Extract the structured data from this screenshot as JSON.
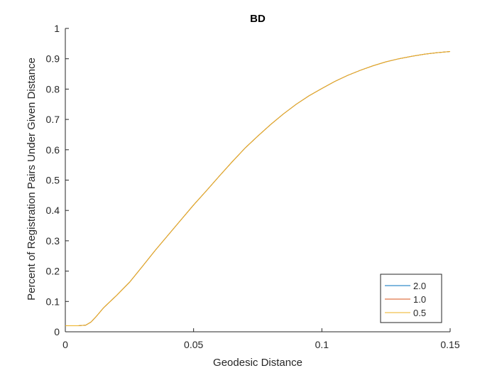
{
  "chart_data": {
    "type": "line",
    "title": "BD",
    "xlabel": "Geodesic Distance",
    "ylabel": "Percent of Registration Pairs Under Given Distance",
    "xlim": [
      0,
      0.15
    ],
    "ylim": [
      0,
      1
    ],
    "xticks": [
      0,
      0.05,
      0.1,
      0.15
    ],
    "xtick_labels": [
      "0",
      "0.05",
      "0.1",
      "0.15"
    ],
    "yticks": [
      0,
      0.1,
      0.2,
      0.3,
      0.4,
      0.5,
      0.6,
      0.7,
      0.8,
      0.9,
      1
    ],
    "ytick_labels": [
      "0",
      "0.1",
      "0.2",
      "0.3",
      "0.4",
      "0.5",
      "0.6",
      "0.7",
      "0.8",
      "0.9",
      "1"
    ],
    "grid": false,
    "legend_position": "bottom-right",
    "x": [
      0,
      0.005,
      0.008,
      0.01,
      0.012,
      0.015,
      0.02,
      0.025,
      0.03,
      0.035,
      0.04,
      0.045,
      0.05,
      0.055,
      0.06,
      0.065,
      0.07,
      0.075,
      0.08,
      0.085,
      0.09,
      0.095,
      0.1,
      0.105,
      0.11,
      0.115,
      0.12,
      0.125,
      0.13,
      0.135,
      0.14,
      0.145,
      0.15
    ],
    "series": [
      {
        "name": "2.0",
        "color": "#0072BD",
        "values": [
          0.02,
          0.02,
          0.022,
          0.032,
          0.05,
          0.08,
          0.12,
          0.163,
          0.215,
          0.268,
          0.318,
          0.368,
          0.418,
          0.465,
          0.513,
          0.56,
          0.605,
          0.645,
          0.683,
          0.718,
          0.75,
          0.778,
          0.802,
          0.825,
          0.845,
          0.862,
          0.877,
          0.89,
          0.9,
          0.908,
          0.915,
          0.92,
          0.924
        ]
      },
      {
        "name": "1.0",
        "color": "#D95319",
        "values": [
          0.02,
          0.02,
          0.022,
          0.032,
          0.05,
          0.08,
          0.12,
          0.163,
          0.215,
          0.268,
          0.318,
          0.368,
          0.418,
          0.465,
          0.513,
          0.56,
          0.605,
          0.645,
          0.683,
          0.718,
          0.75,
          0.778,
          0.802,
          0.825,
          0.845,
          0.862,
          0.877,
          0.89,
          0.9,
          0.908,
          0.915,
          0.92,
          0.924
        ]
      },
      {
        "name": "0.5",
        "color": "#EDB120",
        "values": [
          0.02,
          0.02,
          0.022,
          0.032,
          0.05,
          0.08,
          0.12,
          0.163,
          0.215,
          0.268,
          0.318,
          0.368,
          0.418,
          0.465,
          0.513,
          0.56,
          0.605,
          0.645,
          0.683,
          0.718,
          0.75,
          0.778,
          0.802,
          0.825,
          0.845,
          0.862,
          0.877,
          0.89,
          0.9,
          0.908,
          0.915,
          0.92,
          0.924
        ]
      }
    ]
  }
}
